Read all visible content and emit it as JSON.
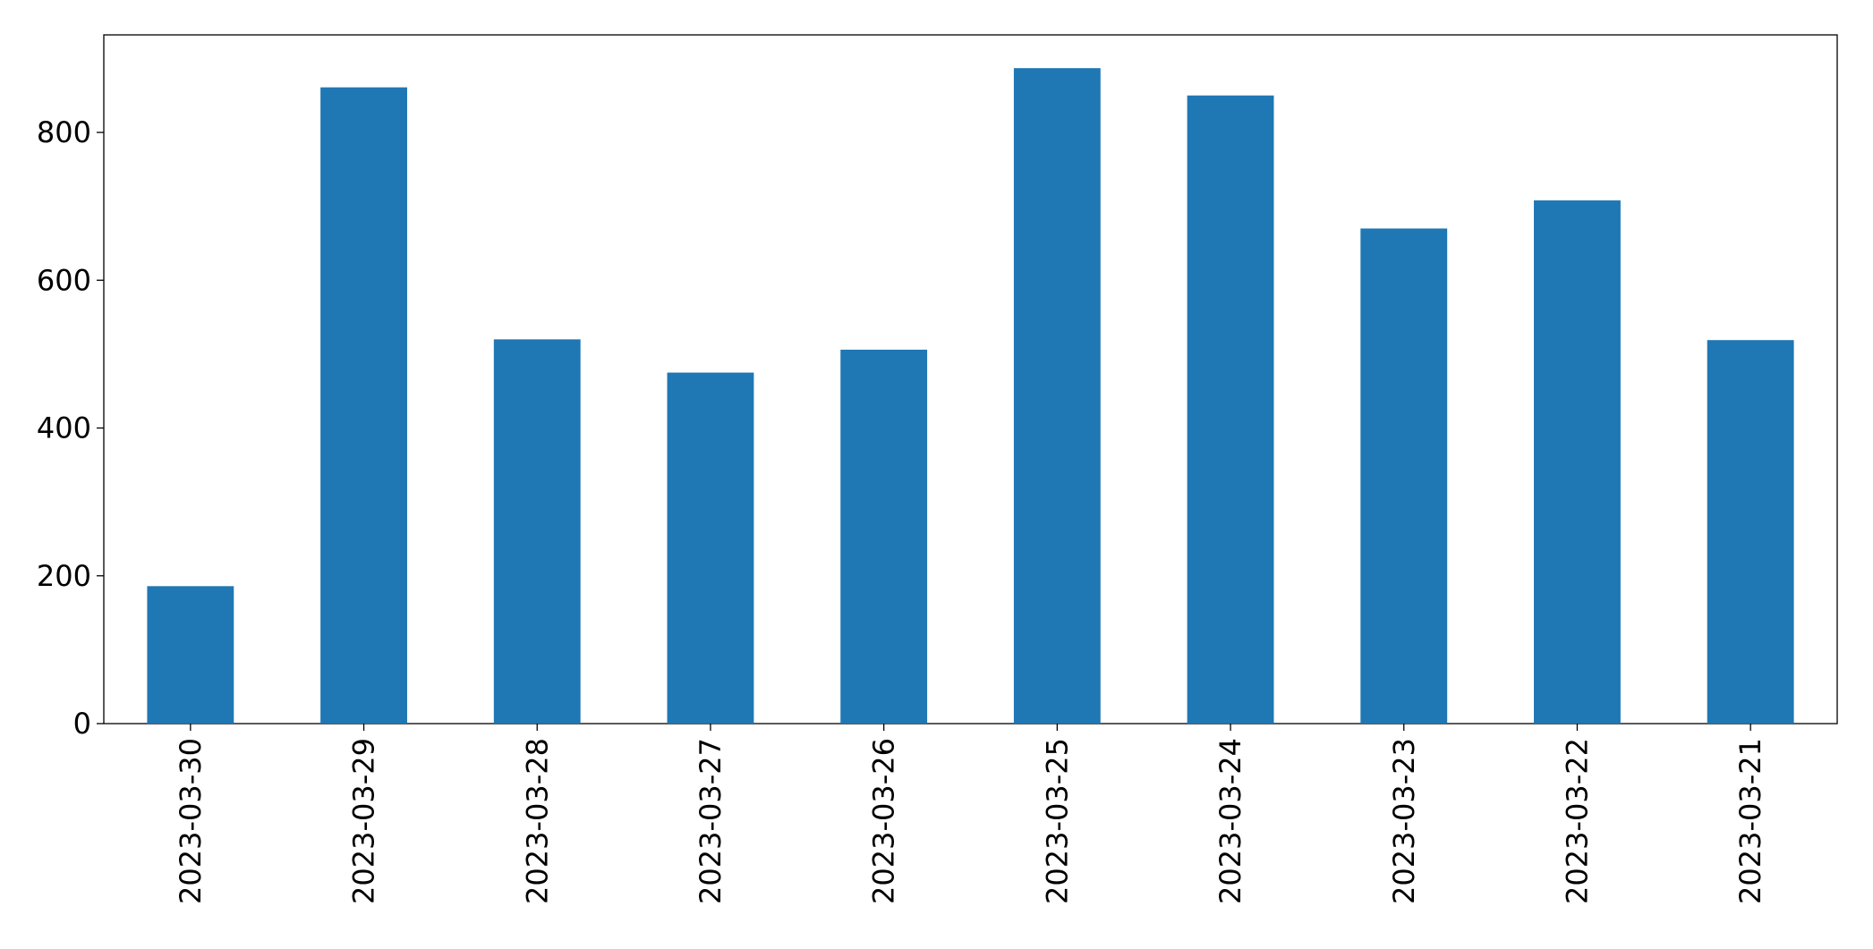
{
  "chart_data": {
    "type": "bar",
    "categories": [
      "2023-03-30",
      "2023-03-29",
      "2023-03-28",
      "2023-03-27",
      "2023-03-26",
      "2023-03-25",
      "2023-03-24",
      "2023-03-23",
      "2023-03-22",
      "2023-03-21"
    ],
    "values": [
      186,
      861,
      520,
      475,
      506,
      887,
      850,
      670,
      708,
      519
    ],
    "color": "#1f77b4",
    "ylim": [
      0,
      932
    ],
    "yticks": [
      0,
      200,
      400,
      600,
      800
    ],
    "grid": false
  }
}
